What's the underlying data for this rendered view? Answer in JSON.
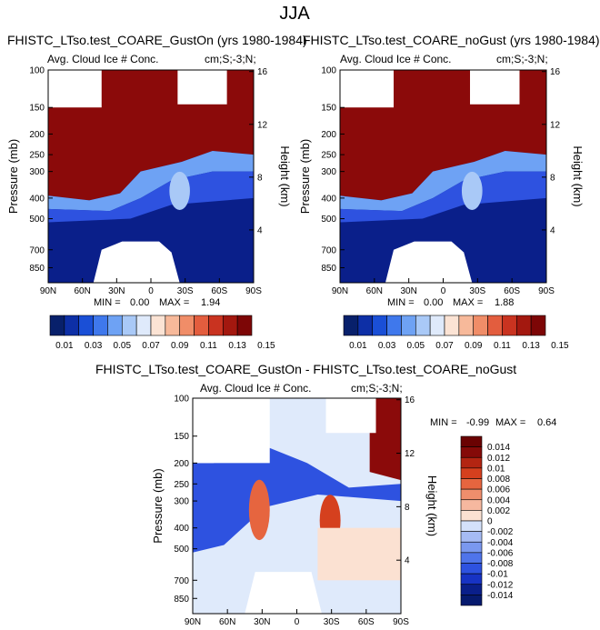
{
  "figure_title": "JJA",
  "colors": {
    "blue_dark": "#0a1f8a",
    "blue_mid": "#2a4bd7",
    "blue_light": "#9cc4ef",
    "white": "#ffffff",
    "red_light": "#f6c6a8",
    "red_mid": "#e24a2c",
    "red_dark": "#8b0a0a"
  },
  "chart_data": [
    {
      "type": "heatmap",
      "id": "panel-gust-on",
      "title": "FHISTC_LTso.test_COARE_GustOn (yrs 1980-1984)",
      "subtitle_left": "Avg. Cloud Ice # Conc.",
      "subtitle_right": "cm;S;-3;N;",
      "ylabel": "Pressure (mb)",
      "ylabel_right": "Height (km)",
      "x_ticks": [
        "90N",
        "60N",
        "30N",
        "0",
        "30S",
        "60S",
        "90S"
      ],
      "y_ticks": [
        "100",
        "150",
        "200",
        "250",
        "300",
        "400",
        "500",
        "700",
        "850"
      ],
      "height_ticks": [
        "16",
        "12",
        "8",
        "4"
      ],
      "min_label": "MIN = ",
      "min_value": "0.00",
      "max_label": "MAX = ",
      "max_value": "1.94",
      "colorbar_labels": [
        "0.01",
        "0.03",
        "0.05",
        "0.07",
        "0.09",
        "0.11",
        "0.13",
        "0.15"
      ]
    },
    {
      "type": "heatmap",
      "id": "panel-no-gust",
      "title": "FHISTC_LTso.test_COARE_noGust (yrs 1980-1984)",
      "subtitle_left": "Avg. Cloud Ice # Conc.",
      "subtitle_right": "cm;S;-3;N;",
      "ylabel": "Pressure (mb)",
      "ylabel_right": "Height (km)",
      "x_ticks": [
        "90N",
        "60N",
        "30N",
        "0",
        "30S",
        "60S",
        "90S"
      ],
      "y_ticks": [
        "100",
        "150",
        "200",
        "250",
        "300",
        "400",
        "500",
        "700",
        "850"
      ],
      "height_ticks": [
        "16",
        "12",
        "8",
        "4"
      ],
      "min_label": "MIN = ",
      "min_value": "0.00",
      "max_label": "MAX = ",
      "max_value": "1.88",
      "colorbar_labels": [
        "0.01",
        "0.03",
        "0.05",
        "0.07",
        "0.09",
        "0.11",
        "0.13",
        "0.15"
      ]
    },
    {
      "type": "heatmap",
      "id": "panel-diff",
      "title": "FHISTC_LTso.test_COARE_GustOn - FHISTC_LTso.test_COARE_noGust",
      "subtitle_left": "Avg. Cloud Ice # Conc.",
      "subtitle_right": "cm;S;-3;N;",
      "ylabel": "Pressure (mb)",
      "ylabel_right": "Height (km)",
      "x_ticks": [
        "90N",
        "60N",
        "30N",
        "0",
        "30S",
        "60S",
        "90S"
      ],
      "y_ticks": [
        "100",
        "150",
        "200",
        "250",
        "300",
        "400",
        "500",
        "700",
        "850"
      ],
      "height_ticks": [
        "16",
        "12",
        "8",
        "4"
      ],
      "min_label": "MIN = ",
      "min_value": "-0.99",
      "max_label": "MAX = ",
      "max_value": "0.64",
      "colorbar_labels": [
        "0.014",
        "0.012",
        "0.01",
        "0.008",
        "0.006",
        "0.004",
        "0.002",
        "0",
        "-0.002",
        "-0.004",
        "-0.006",
        "-0.008",
        "-0.01",
        "-0.012",
        "-0.014"
      ]
    }
  ]
}
